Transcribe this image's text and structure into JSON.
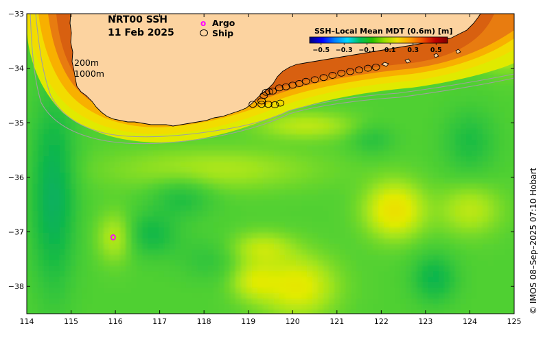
{
  "title": {
    "product": "NRT00 SSH",
    "date": "11 Feb 2025"
  },
  "legend": {
    "argo_symbol": "o",
    "argo_label": "Argo",
    "ship_label": "Ship"
  },
  "depth_contours": {
    "shallow": "200m",
    "deep": "1000m"
  },
  "colorbar": {
    "title": "SSH–Local Mean MDT (0.6m) [m]",
    "ticks": [
      "−0.5",
      "−0.3",
      "−0.1",
      "0.1",
      "0.3",
      "0.5"
    ],
    "tick_values": [
      -0.5,
      -0.3,
      -0.1,
      0.1,
      0.3,
      0.5
    ],
    "colors": [
      "#00007f",
      "#0000ff",
      "#0080ff",
      "#00d8ff",
      "#00c060",
      "#29c000",
      "#9cdf00",
      "#f0e000",
      "#ffa000",
      "#f05000",
      "#c00000",
      "#800000"
    ]
  },
  "axes": {
    "x_ticks": [
      "114",
      "115",
      "116",
      "117",
      "118",
      "119",
      "120",
      "121",
      "122",
      "123",
      "124",
      "125"
    ],
    "x_values": [
      114,
      115,
      116,
      117,
      118,
      119,
      120,
      121,
      122,
      123,
      124,
      125
    ],
    "y_ticks": [
      "−33",
      "−34",
      "−35",
      "−36",
      "−37",
      "−38"
    ],
    "y_values": [
      -33,
      -34,
      -35,
      -36,
      -37,
      -38
    ],
    "lon_range": [
      114,
      125
    ],
    "lat_range": [
      -38.5,
      -33
    ]
  },
  "credit": "© IMOS 08–Sep–2025 07:10 Hobart",
  "colors": {
    "land": "#fcd3a0",
    "ocean_base": "#4fd031",
    "argo": "#ff00ff"
  },
  "argo_floats": [
    {
      "lon": 115.95,
      "lat": -37.1
    }
  ],
  "ship_track": [
    {
      "lon": 119.3,
      "lat": -34.6
    },
    {
      "lon": 119.4,
      "lat": -34.44
    },
    {
      "lon": 119.47,
      "lat": -34.43
    },
    {
      "lon": 119.55,
      "lat": -34.42
    },
    {
      "lon": 119.7,
      "lat": -34.36
    },
    {
      "lon": 119.85,
      "lat": -34.34
    },
    {
      "lon": 120.0,
      "lat": -34.31
    },
    {
      "lon": 120.15,
      "lat": -34.28
    },
    {
      "lon": 120.3,
      "lat": -34.24
    },
    {
      "lon": 120.5,
      "lat": -34.21
    },
    {
      "lon": 120.7,
      "lat": -34.17
    },
    {
      "lon": 120.9,
      "lat": -34.13
    },
    {
      "lon": 121.1,
      "lat": -34.09
    },
    {
      "lon": 121.3,
      "lat": -34.06
    },
    {
      "lon": 121.5,
      "lat": -34.03
    },
    {
      "lon": 121.7,
      "lat": -34.0
    },
    {
      "lon": 121.88,
      "lat": -33.98
    },
    {
      "lon": 119.1,
      "lat": -34.66
    },
    {
      "lon": 119.3,
      "lat": -34.66
    },
    {
      "lon": 119.45,
      "lat": -34.66
    },
    {
      "lon": 119.6,
      "lat": -34.67
    },
    {
      "lon": 119.72,
      "lat": -34.64
    },
    {
      "lon": 119.35,
      "lat": -34.5
    }
  ],
  "ssh_field": {
    "base": 0.03,
    "features": [
      {
        "lon": 114.6,
        "lat": -36.3,
        "value": -0.09,
        "r_lon": 0.5,
        "r_lat": 1.7
      },
      {
        "lon": 118.2,
        "lat": -35.85,
        "value": 0.06,
        "r_lon": 2.3,
        "r_lat": 0.38
      },
      {
        "lon": 117.5,
        "lat": -36.35,
        "value": -0.05,
        "r_lon": 0.7,
        "r_lat": 0.4
      },
      {
        "lon": 116.8,
        "lat": -37.05,
        "value": -0.06,
        "r_lon": 0.6,
        "r_lat": 0.4
      },
      {
        "lon": 116.0,
        "lat": -37.1,
        "value": 0.07,
        "r_lon": 0.4,
        "r_lat": 0.45
      },
      {
        "lon": 119.3,
        "lat": -37.3,
        "value": 0.07,
        "r_lon": 0.7,
        "r_lat": 0.3
      },
      {
        "lon": 120.1,
        "lat": -38.0,
        "value": 0.11,
        "r_lon": 0.85,
        "r_lat": 0.55
      },
      {
        "lon": 119.1,
        "lat": -37.9,
        "value": 0.07,
        "r_lon": 0.5,
        "r_lat": 0.35
      },
      {
        "lon": 122.3,
        "lat": -36.6,
        "value": 0.13,
        "r_lon": 0.65,
        "r_lat": 0.5
      },
      {
        "lon": 124.0,
        "lat": -36.6,
        "value": 0.07,
        "r_lon": 0.7,
        "r_lat": 0.45
      },
      {
        "lon": 124.0,
        "lat": -35.35,
        "value": -0.05,
        "r_lon": 0.6,
        "r_lat": 0.6
      },
      {
        "lon": 123.2,
        "lat": -37.85,
        "value": -0.07,
        "r_lon": 0.5,
        "r_lat": 0.45
      },
      {
        "lon": 121.8,
        "lat": -35.3,
        "value": -0.04,
        "r_lon": 0.5,
        "r_lat": 0.3
      },
      {
        "lon": 120.3,
        "lat": -35.05,
        "value": 0.07,
        "r_lon": 1.1,
        "r_lat": 0.25
      },
      {
        "lon": 118.1,
        "lat": -37.5,
        "value": -0.03,
        "r_lon": 0.7,
        "r_lat": 0.4
      },
      {
        "lon": 124.8,
        "lat": -33.4,
        "value": 0.15,
        "r_lon": 0.6,
        "r_lat": 0.5
      }
    ]
  }
}
